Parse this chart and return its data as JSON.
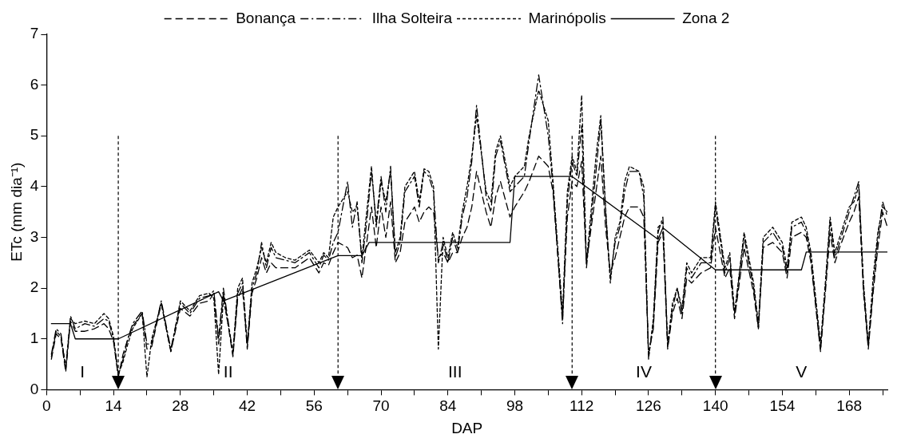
{
  "chart_data": {
    "type": "line",
    "xlabel": "DAP",
    "ylabel": "ETc (mm dia⁻¹)",
    "xlim": [
      0,
      176
    ],
    "ylim": [
      0,
      7
    ],
    "xticks": [
      0,
      {
        "value": 7,
        "label": null
      },
      14,
      {
        "value": 21,
        "label": null
      },
      28,
      {
        "value": 35,
        "label": null
      },
      42,
      {
        "value": 49,
        "label": null
      },
      56,
      {
        "value": 63,
        "label": null
      },
      70,
      {
        "value": 77,
        "label": null
      },
      84,
      {
        "value": 91,
        "label": null
      },
      98,
      {
        "value": 105,
        "label": null
      },
      112,
      {
        "value": 119,
        "label": null
      },
      126,
      {
        "value": 133,
        "label": null
      },
      140,
      {
        "value": 147,
        "label": null
      },
      154,
      {
        "value": 161,
        "label": null
      },
      168,
      {
        "value": 175,
        "label": null
      }
    ],
    "yticks": [
      0,
      1,
      2,
      3,
      4,
      5,
      6,
      7
    ],
    "grid": false,
    "legend": "top",
    "marker": "none",
    "x": [
      1,
      2,
      3,
      4,
      5,
      6,
      8,
      10,
      12,
      13,
      14,
      15,
      16,
      17,
      18,
      20,
      21,
      22,
      24,
      26,
      28,
      30,
      32,
      34,
      35,
      36,
      37,
      39,
      40,
      41,
      42,
      43,
      44,
      45,
      46,
      47,
      48,
      50,
      52,
      55,
      57,
      58,
      59,
      60,
      61,
      63,
      64,
      65,
      66,
      67,
      68,
      69,
      70,
      71,
      72,
      73,
      74,
      75,
      77,
      78,
      79,
      80,
      81,
      82,
      83,
      84,
      85,
      86,
      87,
      88,
      89,
      90,
      92,
      93,
      94,
      95,
      97,
      98,
      100,
      101,
      103,
      105,
      106,
      108,
      109,
      110,
      111,
      112,
      113,
      115,
      116,
      117,
      118,
      119,
      120,
      121,
      122,
      124,
      125,
      126,
      127,
      128,
      129,
      130,
      131,
      132,
      133,
      134,
      135,
      137,
      139,
      140,
      142,
      143,
      144,
      146,
      148,
      149,
      150,
      152,
      154,
      155,
      156,
      158,
      159,
      160,
      162,
      163,
      164,
      165,
      166,
      168,
      169,
      170,
      171,
      172,
      173,
      174,
      175,
      176
    ],
    "series": [
      {
        "name": "Bonança",
        "color": "#000000",
        "line_style": "dashed",
        "values": [
          0.6,
          1.1,
          1.0,
          0.35,
          1.35,
          1.15,
          1.15,
          1.2,
          1.3,
          1.2,
          0.95,
          0.25,
          0.7,
          1.0,
          1.25,
          1.5,
          0.8,
          0.85,
          1.7,
          0.75,
          1.6,
          1.45,
          1.7,
          1.75,
          1.9,
          0.9,
          1.9,
          0.65,
          1.8,
          2.0,
          0.8,
          1.9,
          2.2,
          2.6,
          2.3,
          2.5,
          2.4,
          2.4,
          2.4,
          2.6,
          2.3,
          2.5,
          2.45,
          2.7,
          2.9,
          2.8,
          2.6,
          2.65,
          2.2,
          2.9,
          3.6,
          2.8,
          3.6,
          3.0,
          3.7,
          2.5,
          2.7,
          3.3,
          3.6,
          3.3,
          3.5,
          3.6,
          3.5,
          2.6,
          2.7,
          2.5,
          2.7,
          2.7,
          3.0,
          3.2,
          3.6,
          4.3,
          3.5,
          3.2,
          3.8,
          4.1,
          3.4,
          3.6,
          3.9,
          4.1,
          4.6,
          4.4,
          3.9,
          1.4,
          3.4,
          4.1,
          4.0,
          4.5,
          2.5,
          3.9,
          4.6,
          3.2,
          2.3,
          2.6,
          3.0,
          3.4,
          3.6,
          3.6,
          3.4,
          0.7,
          1.2,
          2.9,
          3.1,
          0.8,
          1.5,
          1.8,
          1.4,
          2.2,
          2.1,
          2.3,
          2.4,
          3.2,
          2.2,
          2.4,
          1.4,
          2.8,
          1.9,
          1.2,
          2.8,
          2.9,
          2.7,
          2.2,
          3.0,
          3.1,
          3.0,
          2.5,
          0.75,
          1.9,
          3.1,
          2.5,
          2.8,
          3.3,
          3.5,
          3.8,
          1.9,
          0.8,
          1.9,
          2.8,
          3.5,
          3.2
        ]
      },
      {
        "name": "Ilha Solteira",
        "color": "#000000",
        "line_style": "dashdot",
        "values": [
          0.7,
          1.2,
          1.1,
          0.4,
          1.45,
          1.2,
          1.3,
          1.25,
          1.4,
          1.35,
          1.0,
          0.3,
          0.6,
          1.0,
          1.3,
          1.55,
          0.9,
          0.9,
          1.75,
          0.8,
          1.7,
          1.5,
          1.8,
          1.85,
          1.95,
          1.0,
          2.0,
          0.7,
          1.9,
          2.1,
          0.85,
          2.0,
          2.3,
          2.9,
          2.4,
          2.8,
          2.6,
          2.55,
          2.5,
          2.7,
          2.4,
          2.65,
          2.55,
          2.9,
          3.1,
          4.1,
          3.2,
          3.7,
          2.5,
          3.3,
          4.3,
          3.3,
          4.2,
          3.5,
          4.4,
          2.6,
          2.9,
          3.9,
          4.2,
          3.6,
          4.3,
          4.2,
          3.9,
          2.5,
          2.9,
          2.5,
          3.0,
          2.7,
          3.4,
          3.8,
          4.5,
          5.6,
          3.8,
          3.5,
          4.6,
          4.9,
          3.9,
          4.0,
          4.2,
          4.9,
          6.2,
          5.0,
          4.0,
          1.3,
          3.7,
          4.5,
          4.2,
          5.2,
          2.4,
          4.3,
          5.3,
          3.5,
          2.2,
          2.9,
          3.2,
          3.9,
          4.3,
          4.3,
          3.8,
          0.65,
          1.3,
          3.1,
          3.4,
          0.85,
          1.6,
          2.0,
          1.5,
          2.4,
          2.2,
          2.5,
          2.5,
          3.6,
          2.3,
          2.6,
          1.5,
          3.0,
          2.0,
          1.2,
          2.9,
          3.1,
          2.8,
          2.3,
          3.2,
          3.3,
          3.1,
          2.6,
          0.8,
          2.0,
          3.3,
          2.6,
          2.9,
          3.5,
          3.8,
          4.1,
          2.0,
          0.85,
          2.0,
          3.0,
          3.7,
          3.4
        ]
      },
      {
        "name": "Marinópolis",
        "color": "#000000",
        "line_style": "dotted",
        "values": [
          0.65,
          1.15,
          1.05,
          0.45,
          1.4,
          1.3,
          1.35,
          1.3,
          1.5,
          1.4,
          1.05,
          0.3,
          0.55,
          0.9,
          1.2,
          1.5,
          0.25,
          1.0,
          1.7,
          0.75,
          1.75,
          1.55,
          1.85,
          1.9,
          1.8,
          0.3,
          1.8,
          0.75,
          2.0,
          2.2,
          0.9,
          2.1,
          2.4,
          2.8,
          2.5,
          2.9,
          2.7,
          2.6,
          2.55,
          2.75,
          2.5,
          2.7,
          2.6,
          3.4,
          3.6,
          3.9,
          3.5,
          3.6,
          2.6,
          3.5,
          4.4,
          3.2,
          4.1,
          3.7,
          4.3,
          2.7,
          3.0,
          4.0,
          4.3,
          3.7,
          4.35,
          4.3,
          4.0,
          0.8,
          3.0,
          2.6,
          3.1,
          2.8,
          3.5,
          4.0,
          4.6,
          5.4,
          3.9,
          3.7,
          4.7,
          5.0,
          4.0,
          4.2,
          4.4,
          5.0,
          5.9,
          5.3,
          4.1,
          1.5,
          3.9,
          4.6,
          4.3,
          5.8,
          2.5,
          4.6,
          5.4,
          3.6,
          2.1,
          3.0,
          3.3,
          4.1,
          4.4,
          4.3,
          4.0,
          0.6,
          1.4,
          3.2,
          3.3,
          0.9,
          1.7,
          2.0,
          1.6,
          2.5,
          2.3,
          2.6,
          2.6,
          3.7,
          2.4,
          2.7,
          1.5,
          3.1,
          2.1,
          1.3,
          3.0,
          3.2,
          2.9,
          2.4,
          3.3,
          3.4,
          3.2,
          2.7,
          0.9,
          2.1,
          3.4,
          2.7,
          3.0,
          3.6,
          3.7,
          4.0,
          2.1,
          0.9,
          2.2,
          3.1,
          3.6,
          3.5
        ]
      },
      {
        "name": "Zona 2",
        "color": "#000000",
        "line_style": "solid",
        "x": [
          1,
          5,
          6,
          15,
          36,
          37,
          61,
          66,
          67.5,
          97,
          98,
          110,
          128,
          129,
          140,
          158,
          159,
          176
        ],
        "values": [
          1.3,
          1.3,
          1.0,
          1.0,
          1.93,
          1.75,
          2.64,
          2.64,
          2.9,
          2.9,
          4.2,
          4.2,
          2.96,
          3.19,
          2.36,
          2.36,
          2.71,
          2.71
        ]
      }
    ],
    "ref_lines": [
      {
        "axis": "x",
        "value": 15,
        "line_style": "dotted"
      },
      {
        "axis": "x",
        "value": 61,
        "line_style": "dotted"
      },
      {
        "axis": "x",
        "value": 110,
        "line_style": "dotted"
      },
      {
        "axis": "x",
        "value": 140,
        "line_style": "dotted"
      }
    ],
    "annotations": [
      "I",
      "II",
      "III",
      "IV",
      "V"
    ]
  }
}
